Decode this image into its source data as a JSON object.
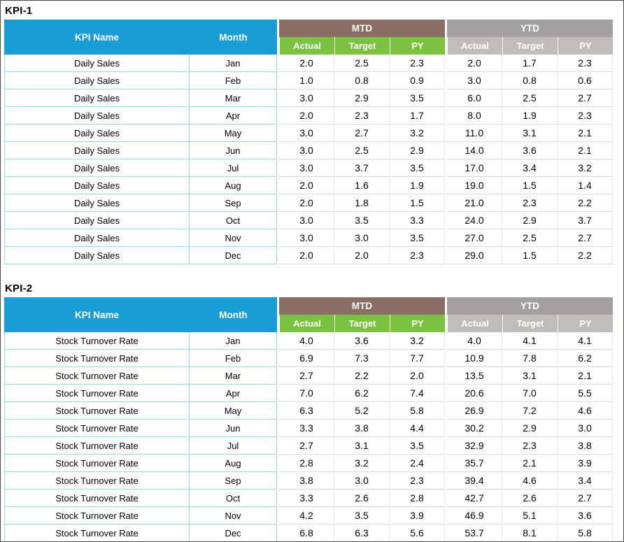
{
  "colors": {
    "header_blue": "#1A9CD4",
    "header_mtd_brown": "#8A6E66",
    "header_ytd_gray": "#A3A09F",
    "subheader_green": "#7CC242",
    "subheader_gray": "#C1BCBA",
    "cell_border_teal": "#9FD8EA",
    "cell_border_gray": "#D9D9D9"
  },
  "headers": {
    "kpi_name": "KPI Name",
    "month": "Month",
    "mtd": "MTD",
    "ytd": "YTD",
    "actual": "Actual",
    "target": "Target",
    "py": "PY"
  },
  "tables": [
    {
      "title": "KPI-1",
      "kpi": "Daily Sales",
      "rows": [
        {
          "kpi": "Daily Sales",
          "month": "Jan",
          "values": [
            "2.0",
            "2.5",
            "2.3",
            "2.0",
            "1.7",
            "2.3"
          ]
        },
        {
          "kpi": "Daily Sales",
          "month": "Feb",
          "values": [
            "1.0",
            "0.8",
            "0.9",
            "3.0",
            "0.8",
            "0.6"
          ]
        },
        {
          "kpi": "Daily Sales",
          "month": "Mar",
          "values": [
            "3.0",
            "2.9",
            "3.5",
            "6.0",
            "2.5",
            "2.7"
          ]
        },
        {
          "kpi": "Daily Sales",
          "month": "Apr",
          "values": [
            "2.0",
            "2.3",
            "1.7",
            "8.0",
            "1.9",
            "2.3"
          ]
        },
        {
          "kpi": "Daily Sales",
          "month": "May",
          "values": [
            "3.0",
            "2.7",
            "3.2",
            "11.0",
            "3.1",
            "2.1"
          ]
        },
        {
          "kpi": "Daily Sales",
          "month": "Jun",
          "values": [
            "3.0",
            "2.5",
            "2.9",
            "14.0",
            "3.6",
            "2.1"
          ]
        },
        {
          "kpi": "Daily Sales",
          "month": "Jul",
          "values": [
            "3.0",
            "3.7",
            "3.5",
            "17.0",
            "3.4",
            "3.2"
          ]
        },
        {
          "kpi": "Daily Sales",
          "month": "Aug",
          "values": [
            "2.0",
            "1.6",
            "1.9",
            "19.0",
            "1.5",
            "1.4"
          ]
        },
        {
          "kpi": "Daily Sales",
          "month": "Sep",
          "values": [
            "2.0",
            "1.8",
            "1.5",
            "21.0",
            "2.3",
            "2.2"
          ]
        },
        {
          "kpi": "Daily Sales",
          "month": "Oct",
          "values": [
            "3.0",
            "3.5",
            "3.3",
            "24.0",
            "2.9",
            "3.7"
          ]
        },
        {
          "kpi": "Daily Sales",
          "month": "Nov",
          "values": [
            "3.0",
            "3.0",
            "3.5",
            "27.0",
            "2.5",
            "2.7"
          ]
        },
        {
          "kpi": "Daily Sales",
          "month": "Dec",
          "values": [
            "2.0",
            "2.0",
            "2.3",
            "29.0",
            "1.5",
            "2.2"
          ]
        }
      ]
    },
    {
      "title": "KPI-2",
      "kpi": "Stock Turnover Rate",
      "rows": [
        {
          "kpi": "Stock Turnover Rate",
          "month": "Jan",
          "values": [
            "4.0",
            "3.6",
            "3.2",
            "4.0",
            "4.1",
            "4.1"
          ]
        },
        {
          "kpi": "Stock Turnover Rate",
          "month": "Feb",
          "values": [
            "6.9",
            "7.3",
            "7.7",
            "10.9",
            "7.8",
            "6.2"
          ]
        },
        {
          "kpi": "Stock Turnover Rate",
          "month": "Mar",
          "values": [
            "2.7",
            "2.2",
            "2.0",
            "13.5",
            "3.1",
            "2.1"
          ]
        },
        {
          "kpi": "Stock Turnover Rate",
          "month": "Apr",
          "values": [
            "7.0",
            "6.2",
            "7.4",
            "20.6",
            "7.0",
            "5.5"
          ]
        },
        {
          "kpi": "Stock Turnover Rate",
          "month": "May",
          "values": [
            "6.3",
            "5.2",
            "5.8",
            "26.9",
            "7.2",
            "4.6"
          ]
        },
        {
          "kpi": "Stock Turnover Rate",
          "month": "Jun",
          "values": [
            "3.3",
            "3.8",
            "4.4",
            "30.2",
            "2.9",
            "3.0"
          ]
        },
        {
          "kpi": "Stock Turnover Rate",
          "month": "Jul",
          "values": [
            "2.7",
            "3.1",
            "3.5",
            "32.9",
            "2.3",
            "3.8"
          ]
        },
        {
          "kpi": "Stock Turnover Rate",
          "month": "Aug",
          "values": [
            "2.8",
            "3.2",
            "2.4",
            "35.7",
            "2.1",
            "3.9"
          ]
        },
        {
          "kpi": "Stock Turnover Rate",
          "month": "Sep",
          "values": [
            "3.8",
            "3.0",
            "2.3",
            "39.4",
            "4.6",
            "3.4"
          ]
        },
        {
          "kpi": "Stock Turnover Rate",
          "month": "Oct",
          "values": [
            "3.3",
            "2.6",
            "2.8",
            "42.7",
            "2.6",
            "2.7"
          ]
        },
        {
          "kpi": "Stock Turnover Rate",
          "month": "Nov",
          "values": [
            "4.2",
            "3.5",
            "3.9",
            "46.9",
            "5.1",
            "3.6"
          ]
        },
        {
          "kpi": "Stock Turnover Rate",
          "month": "Dec",
          "values": [
            "6.8",
            "6.3",
            "5.6",
            "53.7",
            "8.1",
            "5.8"
          ]
        }
      ]
    }
  ]
}
